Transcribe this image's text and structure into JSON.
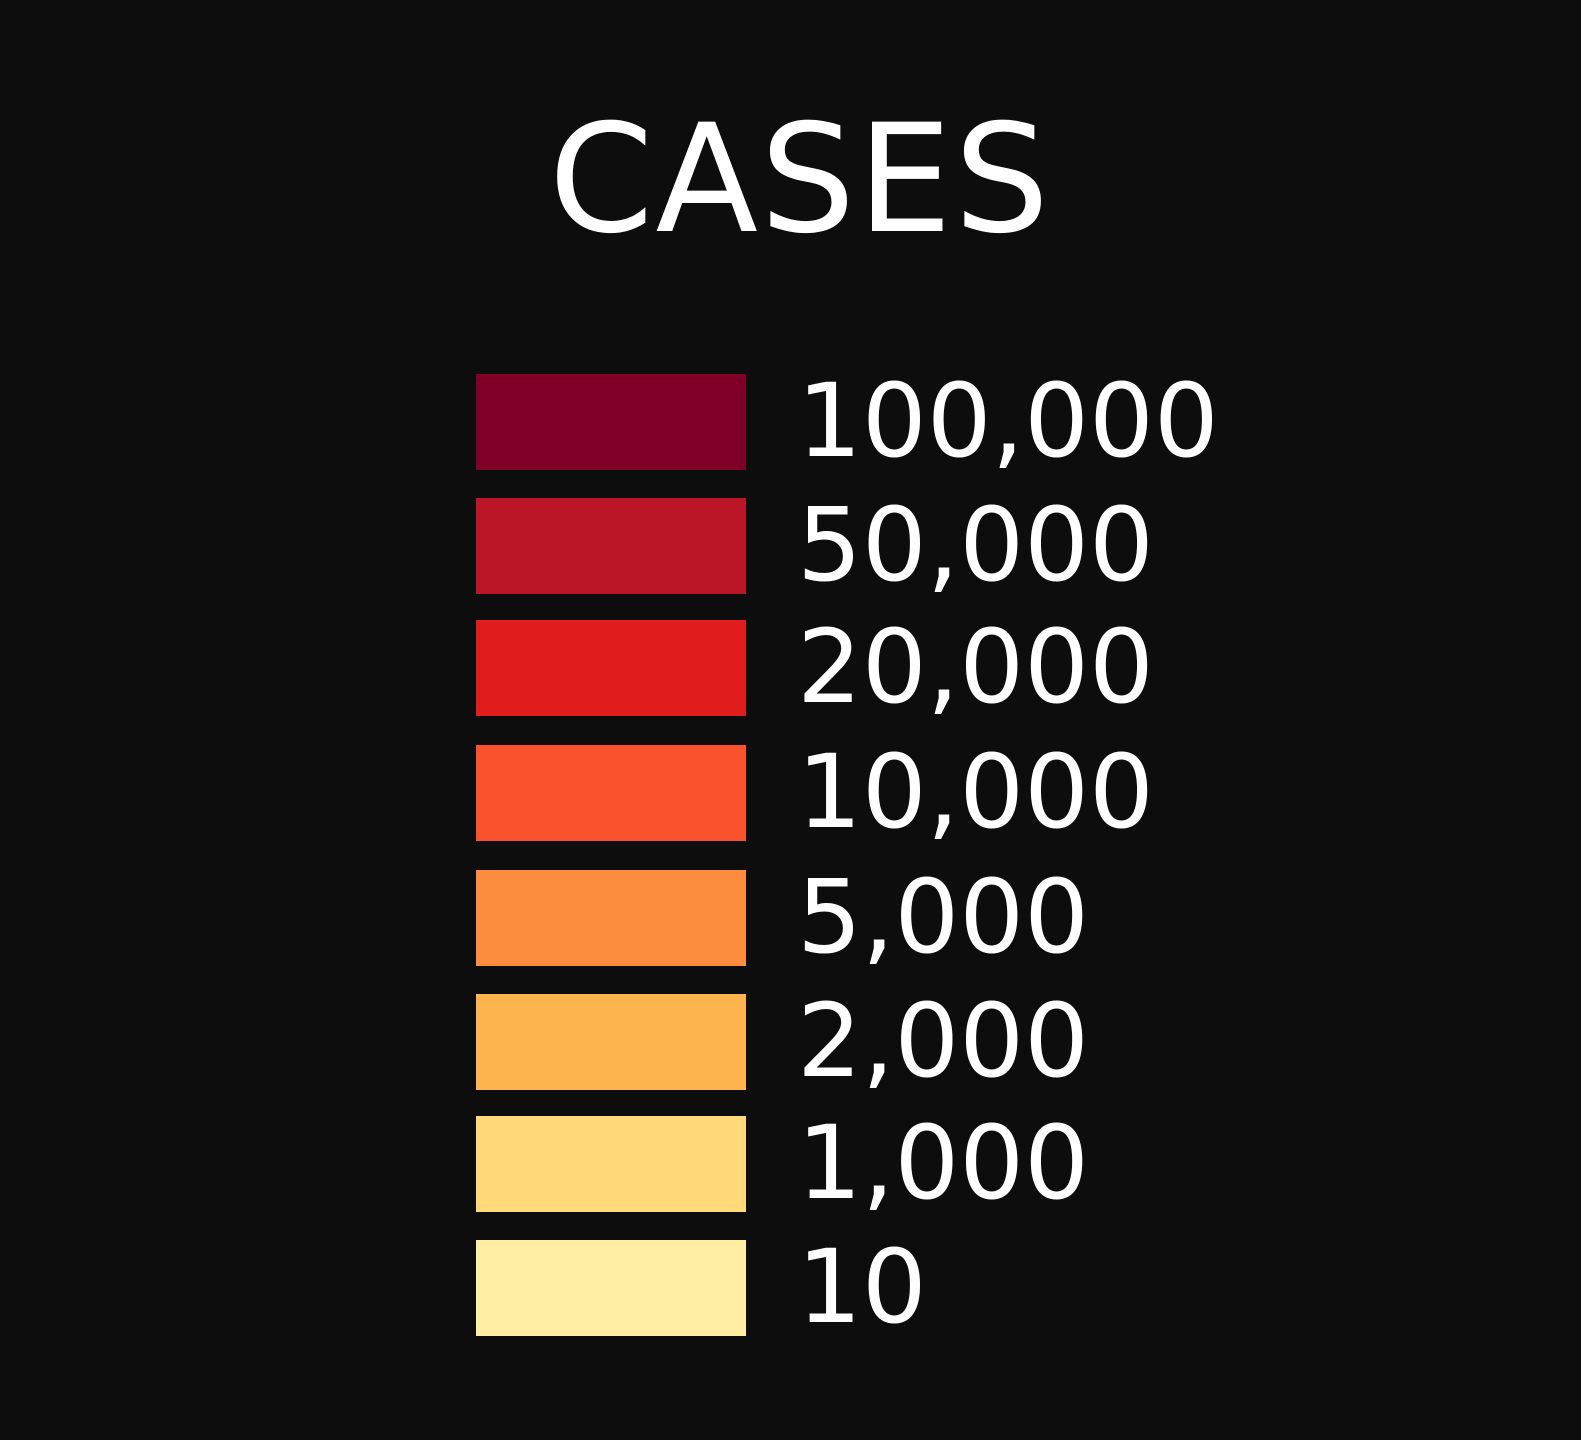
{
  "legend": {
    "title": "CASES",
    "items": [
      {
        "label": "100,000",
        "color": "#7f0027"
      },
      {
        "label": "50,000",
        "color": "#bb1628"
      },
      {
        "label": "20,000",
        "color": "#e01c1c"
      },
      {
        "label": "10,000",
        "color": "#fa522c"
      },
      {
        "label": "5,000",
        "color": "#fd8d3e"
      },
      {
        "label": "2,000",
        "color": "#feb44e"
      },
      {
        "label": "1,000",
        "color": "#ffd97a"
      },
      {
        "label": "10",
        "color": "#ffeea4"
      }
    ]
  }
}
